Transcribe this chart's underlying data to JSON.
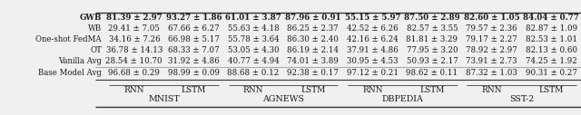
{
  "datasets": [
    "MNIST",
    "AGNEWS",
    "DBPEDIA",
    "SST-2"
  ],
  "col_headers": [
    "RNN",
    "LSTM",
    "RNN",
    "LSTM",
    "RNN",
    "LSTM",
    "RNN",
    "LSTM"
  ],
  "row_labels": [
    "Base Model Avg",
    "Vanilla Avg",
    "OT",
    "One-shot FedMA",
    "WB",
    "GWB"
  ],
  "smallcaps_rows": [
    0,
    1,
    3
  ],
  "bold_rows": [
    5
  ],
  "cells": [
    [
      "96.68 ± 0.29",
      "98.99 ± 0.09",
      "88.68 ± 0.12",
      "92.38 ± 0.17",
      "97.12 ± 0.21",
      "98.62 ± 0.11",
      "87.32 ± 1.03",
      "90.31 ± 0.27"
    ],
    [
      "28.54 ± 10.70",
      "31.92 ± 4.86",
      "40.77 ± 4.94",
      "74.01 ± 3.89",
      "30.95 ± 4.53",
      "50.93 ± 2.17",
      "73.91 ± 2.73",
      "74.25 ± 1.92"
    ],
    [
      "36.78 ± 14.13",
      "68.33 ± 7.07",
      "53.05 ± 4.30",
      "86.19 ± 2.14",
      "37.91 ± 4.86",
      "77.95 ± 3.20",
      "78.92 ± 2.97",
      "82.13 ± 0.60"
    ],
    [
      "34.16 ± 7.26",
      "66.98 ± 5.17",
      "55.78 ± 3.64",
      "86.30 ± 2.40",
      "42.16 ± 6.24",
      "81.81 ± 3.29",
      "79.17 ± 2.27",
      "82.53 ± 1.01"
    ],
    [
      "29.41 ± 7.05",
      "67.66 ± 6.27",
      "55.63 ± 4.18",
      "86.25 ± 2.37",
      "42.52 ± 6.26",
      "82.57 ± 3.55",
      "79.57 ± 2.36",
      "82.87 ± 1.09"
    ],
    [
      "81.39 ± 2.97",
      "93.27 ± 1.86",
      "61.01 ± 3.87",
      "87.96 ± 0.91",
      "55.15 ± 5.97",
      "87.50 ± 2.89",
      "82.60 ± 1.05",
      "84.04 ± 0.77"
    ]
  ],
  "background_color": "#f0f0f0",
  "text_color": "#1a1a1a",
  "cell_font_size": 6.2,
  "header_font_size": 6.5,
  "dataset_font_size": 6.8
}
